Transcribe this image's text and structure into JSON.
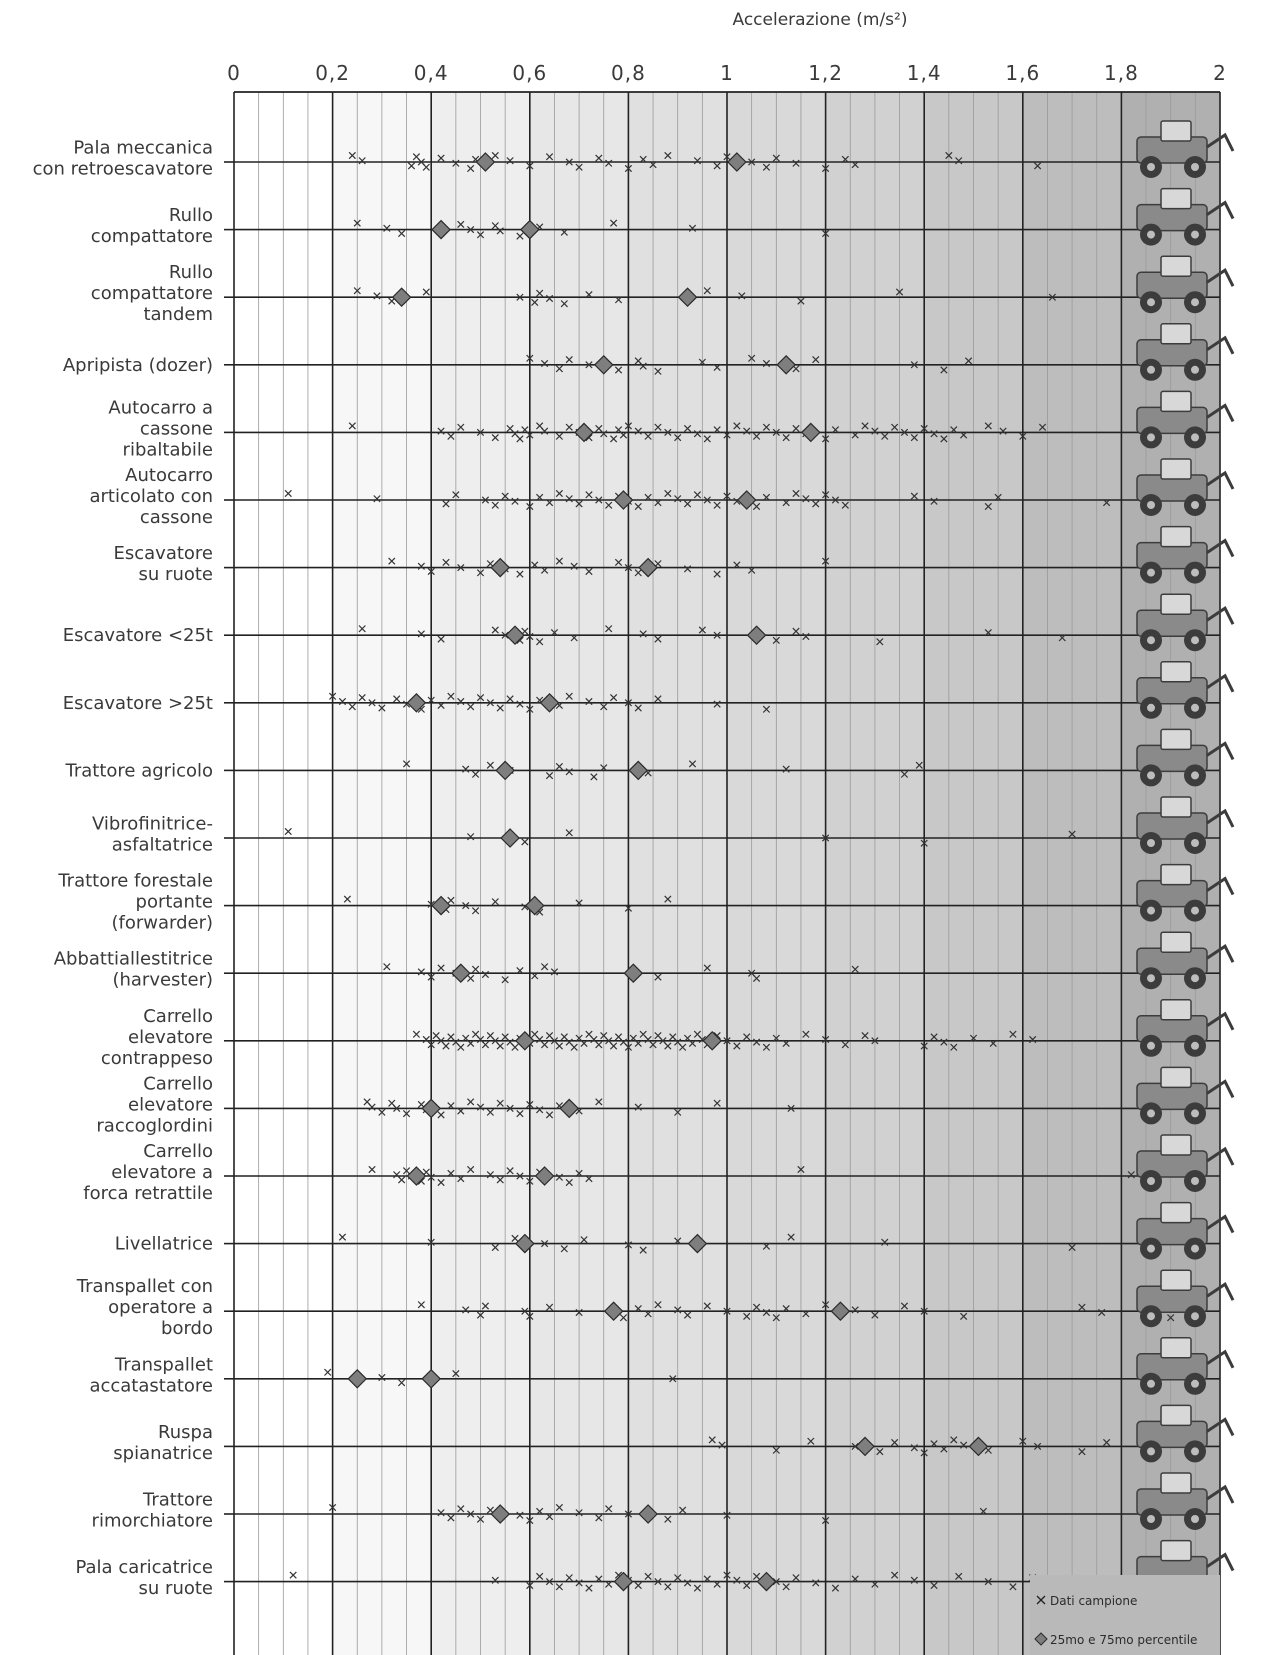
{
  "chart_data": {
    "type": "scatter",
    "xlabel": "Accelerazione (m/s²)",
    "xlim": [
      0,
      2
    ],
    "x_ticks": [
      "0",
      "0,2",
      "0,4",
      "0,6",
      "0,8",
      "1",
      "1,2",
      "1,4",
      "1,6",
      "1,8",
      "2"
    ],
    "legend": {
      "position": "bottom-right",
      "samples": "Dati campione",
      "percentiles": "25mo e 75mo percentile"
    },
    "categories": [
      {
        "label": [
          "Pala meccanica",
          "con retroescavatore"
        ],
        "icon": "backhoe-loader-icon",
        "p25": 0.51,
        "p75": 1.02,
        "samples": [
          0.24,
          0.26,
          0.36,
          0.37,
          0.38,
          0.39,
          0.42,
          0.45,
          0.48,
          0.49,
          0.51,
          0.53,
          0.56,
          0.6,
          0.64,
          0.68,
          0.7,
          0.74,
          0.76,
          0.8,
          0.83,
          0.85,
          0.88,
          0.94,
          0.98,
          1.0,
          1.05,
          1.08,
          1.1,
          1.14,
          1.2,
          1.24,
          1.26,
          1.45,
          1.47,
          1.63
        ]
      },
      {
        "label": [
          "Rullo",
          "compattatore"
        ],
        "icon": "roller-icon",
        "p25": 0.42,
        "p75": 0.6,
        "samples": [
          0.25,
          0.31,
          0.34,
          0.46,
          0.48,
          0.5,
          0.53,
          0.54,
          0.58,
          0.62,
          0.67,
          0.77,
          0.93,
          1.2
        ]
      },
      {
        "label": [
          "Rullo",
          "compattatore",
          "tandem"
        ],
        "icon": "tandem-roller-icon",
        "p25": 0.34,
        "p75": 0.92,
        "samples": [
          0.25,
          0.29,
          0.32,
          0.39,
          0.58,
          0.61,
          0.62,
          0.64,
          0.67,
          0.72,
          0.78,
          0.96,
          1.03,
          1.15,
          1.35,
          1.66
        ]
      },
      {
        "label": [
          "Apripista (dozer)"
        ],
        "icon": "dozer-icon",
        "p25": 0.75,
        "p75": 1.12,
        "samples": [
          0.6,
          0.63,
          0.66,
          0.68,
          0.72,
          0.78,
          0.82,
          0.83,
          0.86,
          0.95,
          0.98,
          1.05,
          1.08,
          1.14,
          1.18,
          1.38,
          1.44,
          1.49
        ]
      },
      {
        "label": [
          "Autocarro a",
          "cassone",
          "ribaltabile"
        ],
        "icon": "dump-truck-icon",
        "p25": 0.71,
        "p75": 1.17,
        "samples": [
          0.24,
          0.42,
          0.44,
          0.46,
          0.5,
          0.53,
          0.56,
          0.57,
          0.58,
          0.59,
          0.6,
          0.62,
          0.63,
          0.66,
          0.68,
          0.7,
          0.72,
          0.74,
          0.75,
          0.77,
          0.78,
          0.79,
          0.8,
          0.82,
          0.84,
          0.86,
          0.88,
          0.9,
          0.92,
          0.94,
          0.96,
          0.98,
          1.0,
          1.02,
          1.04,
          1.06,
          1.08,
          1.1,
          1.12,
          1.14,
          1.16,
          1.2,
          1.22,
          1.26,
          1.28,
          1.3,
          1.32,
          1.34,
          1.36,
          1.38,
          1.4,
          1.42,
          1.44,
          1.46,
          1.48,
          1.53,
          1.56,
          1.6,
          1.64
        ]
      },
      {
        "label": [
          "Autocarro",
          "articolato con",
          "cassone"
        ],
        "icon": "articulated-truck-icon",
        "p25": 0.79,
        "p75": 1.04,
        "samples": [
          0.11,
          0.29,
          0.43,
          0.45,
          0.51,
          0.53,
          0.55,
          0.57,
          0.6,
          0.62,
          0.64,
          0.66,
          0.68,
          0.7,
          0.72,
          0.74,
          0.76,
          0.78,
          0.8,
          0.82,
          0.84,
          0.86,
          0.88,
          0.9,
          0.92,
          0.94,
          0.96,
          0.98,
          1.0,
          1.02,
          1.06,
          1.08,
          1.12,
          1.14,
          1.16,
          1.18,
          1.2,
          1.22,
          1.24,
          1.38,
          1.42,
          1.53,
          1.55,
          1.77,
          1.84
        ]
      },
      {
        "label": [
          "Escavatore",
          "su ruote"
        ],
        "icon": "wheeled-excavator-icon",
        "p25": 0.54,
        "p75": 0.84,
        "samples": [
          0.32,
          0.38,
          0.4,
          0.43,
          0.46,
          0.5,
          0.52,
          0.55,
          0.58,
          0.61,
          0.63,
          0.66,
          0.69,
          0.72,
          0.78,
          0.8,
          0.82,
          0.86,
          0.92,
          0.98,
          1.02,
          1.05,
          1.2
        ]
      },
      {
        "label": [
          "Escavatore <25t"
        ],
        "icon": "excavator-small-icon",
        "p25": 0.57,
        "p75": 1.06,
        "samples": [
          0.26,
          0.38,
          0.42,
          0.53,
          0.55,
          0.58,
          0.59,
          0.6,
          0.62,
          0.65,
          0.69,
          0.76,
          0.83,
          0.86,
          0.95,
          0.98,
          1.1,
          1.14,
          1.16,
          1.31,
          1.53,
          1.68
        ]
      },
      {
        "label": [
          "Escavatore >25t"
        ],
        "icon": "excavator-large-icon",
        "p25": 0.37,
        "p75": 0.64,
        "samples": [
          0.2,
          0.22,
          0.24,
          0.26,
          0.28,
          0.3,
          0.33,
          0.35,
          0.38,
          0.4,
          0.42,
          0.44,
          0.46,
          0.48,
          0.5,
          0.52,
          0.54,
          0.56,
          0.58,
          0.6,
          0.62,
          0.66,
          0.68,
          0.72,
          0.75,
          0.77,
          0.8,
          0.82,
          0.86,
          0.98,
          1.08
        ]
      },
      {
        "label": [
          "Trattore agricolo"
        ],
        "icon": "farm-tractor-icon",
        "p25": 0.55,
        "p75": 0.82,
        "samples": [
          0.35,
          0.47,
          0.49,
          0.52,
          0.56,
          0.64,
          0.66,
          0.68,
          0.73,
          0.75,
          0.84,
          0.93,
          1.12,
          1.36,
          1.39
        ]
      },
      {
        "label": [
          "Vibrofinitrice-",
          "asfaltatrice"
        ],
        "icon": "paver-icon",
        "p25": 0.56,
        "p75": null,
        "samples": [
          0.11,
          0.48,
          0.59,
          0.68,
          1.2,
          1.4,
          1.7
        ]
      },
      {
        "label": [
          "Trattore forestale",
          "portante",
          "(forwarder)"
        ],
        "icon": "forwarder-icon",
        "p25": 0.42,
        "p75": 0.61,
        "samples": [
          0.23,
          0.4,
          0.43,
          0.44,
          0.47,
          0.49,
          0.53,
          0.59,
          0.62,
          0.7,
          0.8,
          0.88
        ]
      },
      {
        "label": [
          "Abbattiallestitrice",
          "(harvester)"
        ],
        "icon": "harvester-icon",
        "p25": 0.46,
        "p75": 0.81,
        "samples": [
          0.31,
          0.38,
          0.4,
          0.42,
          0.45,
          0.48,
          0.49,
          0.51,
          0.55,
          0.58,
          0.61,
          0.63,
          0.65,
          0.86,
          0.96,
          1.05,
          1.06,
          1.26,
          1.86
        ]
      },
      {
        "label": [
          "Carrello",
          "elevatore",
          "contrappeso"
        ],
        "icon": "counterbalance-forklift-icon",
        "p25": 0.59,
        "p75": 0.97,
        "samples": [
          0.37,
          0.39,
          0.4,
          0.41,
          0.42,
          0.43,
          0.44,
          0.45,
          0.46,
          0.47,
          0.48,
          0.49,
          0.5,
          0.51,
          0.52,
          0.53,
          0.54,
          0.55,
          0.56,
          0.57,
          0.58,
          0.6,
          0.61,
          0.62,
          0.63,
          0.64,
          0.65,
          0.66,
          0.67,
          0.68,
          0.69,
          0.7,
          0.71,
          0.72,
          0.73,
          0.74,
          0.75,
          0.76,
          0.77,
          0.78,
          0.79,
          0.8,
          0.81,
          0.82,
          0.83,
          0.84,
          0.85,
          0.86,
          0.87,
          0.88,
          0.89,
          0.9,
          0.91,
          0.92,
          0.93,
          0.94,
          0.95,
          0.96,
          0.98,
          1.0,
          1.02,
          1.04,
          1.06,
          1.08,
          1.1,
          1.12,
          1.16,
          1.2,
          1.24,
          1.28,
          1.3,
          1.4,
          1.42,
          1.44,
          1.46,
          1.5,
          1.54,
          1.58,
          1.62
        ]
      },
      {
        "label": [
          "Carrello",
          "elevatore",
          "raccoglordini"
        ],
        "icon": "order-picker-icon",
        "p25": 0.4,
        "p75": 0.68,
        "samples": [
          0.27,
          0.28,
          0.3,
          0.32,
          0.33,
          0.35,
          0.38,
          0.39,
          0.42,
          0.44,
          0.46,
          0.48,
          0.5,
          0.52,
          0.54,
          0.56,
          0.58,
          0.6,
          0.62,
          0.64,
          0.66,
          0.7,
          0.74,
          0.82,
          0.9,
          0.98,
          1.13
        ]
      },
      {
        "label": [
          "Carrello",
          "elevatore a",
          "forca retrattile"
        ],
        "icon": "reach-truck-icon",
        "p25": 0.37,
        "p75": 0.63,
        "samples": [
          0.28,
          0.33,
          0.34,
          0.35,
          0.36,
          0.38,
          0.39,
          0.4,
          0.42,
          0.44,
          0.46,
          0.48,
          0.52,
          0.54,
          0.56,
          0.58,
          0.6,
          0.62,
          0.66,
          0.68,
          0.7,
          0.72,
          1.15,
          1.82
        ]
      },
      {
        "label": [
          "Livellatrice"
        ],
        "icon": "grader-icon",
        "p25": 0.59,
        "p75": 0.94,
        "samples": [
          0.22,
          0.4,
          0.53,
          0.57,
          0.63,
          0.67,
          0.71,
          0.8,
          0.83,
          0.9,
          1.08,
          1.13,
          1.32,
          1.7
        ]
      },
      {
        "label": [
          "Transpallet con",
          "operatore a",
          "bordo"
        ],
        "icon": "rider-pallet-truck-icon",
        "p25": 0.77,
        "p75": 1.23,
        "samples": [
          0.38,
          0.47,
          0.5,
          0.51,
          0.59,
          0.6,
          0.64,
          0.7,
          0.79,
          0.82,
          0.84,
          0.86,
          0.9,
          0.92,
          0.96,
          1.0,
          1.04,
          1.06,
          1.08,
          1.1,
          1.12,
          1.16,
          1.2,
          1.26,
          1.3,
          1.36,
          1.4,
          1.48,
          1.72,
          1.76,
          1.9,
          1.92
        ]
      },
      {
        "label": [
          "Transpallet",
          "accatastatore"
        ],
        "icon": "pallet-stacker-icon",
        "p25": 0.25,
        "p75": 0.4,
        "samples": [
          0.19,
          0.3,
          0.34,
          0.45,
          0.89
        ]
      },
      {
        "label": [
          "Ruspa",
          "spianatrice"
        ],
        "icon": "scraper-icon",
        "p25": 1.28,
        "p75": 1.51,
        "samples": [
          0.97,
          0.99,
          1.1,
          1.17,
          1.26,
          1.31,
          1.34,
          1.38,
          1.4,
          1.42,
          1.44,
          1.46,
          1.48,
          1.53,
          1.6,
          1.63,
          1.72,
          1.77
        ]
      },
      {
        "label": [
          "Trattore",
          "rimorchiatore"
        ],
        "icon": "tow-tractor-icon",
        "p25": 0.54,
        "p75": 0.84,
        "samples": [
          0.2,
          0.42,
          0.44,
          0.46,
          0.48,
          0.5,
          0.52,
          0.58,
          0.6,
          0.62,
          0.64,
          0.66,
          0.7,
          0.74,
          0.76,
          0.8,
          0.88,
          0.91,
          1.0,
          1.2,
          1.52
        ]
      },
      {
        "label": [
          "Pala caricatrice",
          "su ruote"
        ],
        "icon": "wheel-loader-icon",
        "p25": 0.79,
        "p75": 1.08,
        "samples": [
          0.12,
          0.53,
          0.6,
          0.62,
          0.64,
          0.66,
          0.68,
          0.7,
          0.72,
          0.74,
          0.76,
          0.78,
          0.8,
          0.82,
          0.84,
          0.86,
          0.88,
          0.9,
          0.92,
          0.94,
          0.96,
          0.98,
          1.0,
          1.02,
          1.04,
          1.06,
          1.1,
          1.12,
          1.14,
          1.18,
          1.22,
          1.26,
          1.3,
          1.34,
          1.38,
          1.42,
          1.47,
          1.53,
          1.58,
          1.62
        ]
      }
    ]
  },
  "colors": {
    "axis": "#222222",
    "minor_grid": "#9a9a9a",
    "marker": "#333333",
    "diamond_fill": "#7e7e7e",
    "diamond_stroke": "#2a2a2a",
    "band_shades": [
      "#ffffff",
      "#f7f7f7",
      "#eeeeee",
      "#e7e7e7",
      "#e0e0e0",
      "#d9d9d9",
      "#d1d1d1",
      "#c8c8c8",
      "#bdbdbd",
      "#b0b0b0"
    ],
    "icon_fill": "#8a8a8a",
    "icon_dark": "#3c3c3c"
  }
}
